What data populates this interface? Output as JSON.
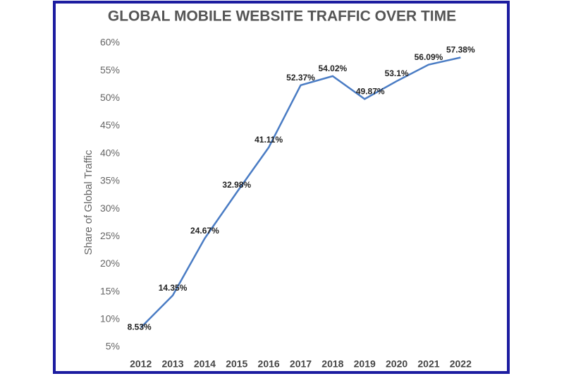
{
  "chart_data": {
    "type": "line",
    "title": "GLOBAL MOBILE WEBSITE TRAFFIC OVER TIME",
    "y_label": "Share of Global Traffic",
    "categories": [
      "2012",
      "2013",
      "2014",
      "2015",
      "2016",
      "2017",
      "2018",
      "2019",
      "2020",
      "2021",
      "2022"
    ],
    "values": [
      8.53,
      14.35,
      24.67,
      32.98,
      41.11,
      52.37,
      54.02,
      49.87,
      53.1,
      56.09,
      57.38
    ],
    "value_labels": [
      "8.53%",
      "14.35%",
      "24.67%",
      "32.98%",
      "41.11%",
      "52.37%",
      "54.02%",
      "49.87%",
      "53.1%",
      "56.09%",
      "57.38%"
    ],
    "color": "#4a7cc4",
    "ylim": [
      5,
      60
    ],
    "yticks": [
      {
        "value": 5,
        "label": "5%"
      },
      {
        "value": 10,
        "label": "10%"
      },
      {
        "value": 15,
        "label": "15%"
      },
      {
        "value": 20,
        "label": "20%"
      },
      {
        "value": 25,
        "label": "25%"
      },
      {
        "value": 30,
        "label": "30%"
      },
      {
        "value": 35,
        "label": "35%"
      },
      {
        "value": 40,
        "label": "40%"
      },
      {
        "value": 45,
        "label": "45%"
      },
      {
        "value": 50,
        "label": "50%"
      },
      {
        "value": 55,
        "label": "55%"
      },
      {
        "value": 60,
        "label": "60%"
      }
    ],
    "grid": false
  }
}
